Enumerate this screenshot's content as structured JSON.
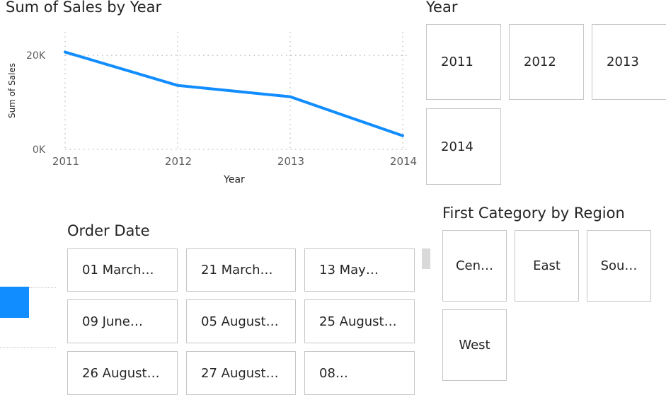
{
  "line_visual": {
    "title": "Sum of Sales by Year"
  },
  "chart_data": {
    "type": "line",
    "title": "Sum of Sales by Year",
    "xlabel": "Year",
    "ylabel": "Sum of Sales",
    "x": [
      "2011",
      "2012",
      "2013",
      "2014"
    ],
    "y_ticks": [
      "0K",
      "20K"
    ],
    "ylim": [
      0,
      25000
    ],
    "series": [
      {
        "values": [
          20700,
          13600,
          11200,
          2900
        ]
      }
    ],
    "grid": true,
    "color": "#118DFF"
  },
  "year_slicer": {
    "title": "Year",
    "items": [
      "2011",
      "2012",
      "2013",
      "2014"
    ]
  },
  "order_date_slicer": {
    "title": "Order Date",
    "items": [
      "01 March…",
      "21 March…",
      "13 May…",
      "09 June…",
      "05 August…",
      "25 August…",
      "26 August…",
      "27 August…",
      "08…"
    ]
  },
  "region_slicer": {
    "title": "First Category by Region",
    "items": [
      "Cen…",
      "East",
      "Sou…",
      "West"
    ]
  },
  "colors": {
    "accent": "#118DFF",
    "border": "#C8C6C4",
    "scrollbar": "#D9D9D9"
  }
}
